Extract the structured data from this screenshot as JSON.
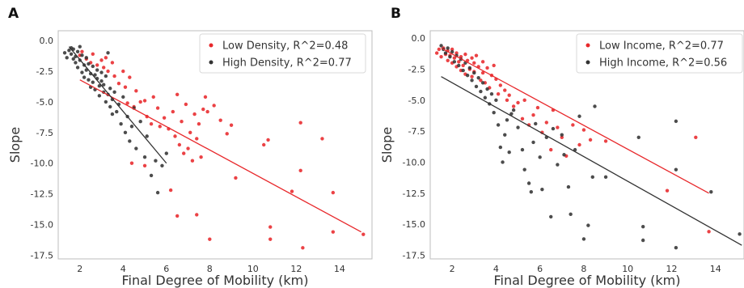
{
  "chart_data": [
    {
      "type": "scatter",
      "panel_label": "A",
      "title": "",
      "xlabel": "Final Degree of Mobility (km)",
      "ylabel": "Slope",
      "xlim": [
        1.0,
        15.5
      ],
      "ylim": [
        -17.8,
        0.8
      ],
      "xticks": [
        2,
        4,
        6,
        8,
        10,
        12,
        14
      ],
      "yticks": [
        0.0,
        -2.5,
        -5.0,
        -7.5,
        -10.0,
        -12.5,
        -15.0,
        -17.5
      ],
      "grid": false,
      "legend_position": "top-right",
      "series": [
        {
          "name": "Low Density, R^2=0.48",
          "color": "#e8282b",
          "fit": {
            "x": [
              2.0,
              15.0
            ],
            "y": [
              -3.2,
              -15.6
            ]
          },
          "points": [
            [
              2.0,
              -1.2
            ],
            [
              2.1,
              -0.9
            ],
            [
              2.3,
              -1.5
            ],
            [
              2.5,
              -1.8
            ],
            [
              2.6,
              -1.1
            ],
            [
              2.8,
              -2.0
            ],
            [
              3.0,
              -1.6
            ],
            [
              3.1,
              -2.2
            ],
            [
              3.2,
              -1.4
            ],
            [
              3.3,
              -2.5
            ],
            [
              3.5,
              -1.8
            ],
            [
              3.6,
              -2.9
            ],
            [
              3.8,
              -3.5
            ],
            [
              4.0,
              -2.5
            ],
            [
              4.1,
              -3.8
            ],
            [
              4.2,
              -5.1
            ],
            [
              4.3,
              -3.0
            ],
            [
              4.5,
              -5.4
            ],
            [
              4.6,
              -4.1
            ],
            [
              4.8,
              -5.0
            ],
            [
              5.0,
              -4.9
            ],
            [
              5.1,
              -6.2
            ],
            [
              5.3,
              -6.8
            ],
            [
              5.4,
              -4.6
            ],
            [
              5.6,
              -5.5
            ],
            [
              5.7,
              -7.0
            ],
            [
              5.9,
              -6.3
            ],
            [
              6.1,
              -7.2
            ],
            [
              6.3,
              -5.8
            ],
            [
              6.4,
              -7.8
            ],
            [
              6.5,
              -4.4
            ],
            [
              6.6,
              -8.5
            ],
            [
              6.7,
              -6.6
            ],
            [
              6.8,
              -9.2
            ],
            [
              6.9,
              -5.2
            ],
            [
              7.0,
              -8.8
            ],
            [
              7.1,
              -7.5
            ],
            [
              7.2,
              -9.8
            ],
            [
              7.3,
              -6.0
            ],
            [
              7.4,
              -8.0
            ],
            [
              7.5,
              -6.8
            ],
            [
              7.6,
              -9.5
            ],
            [
              7.7,
              -5.6
            ],
            [
              7.8,
              -4.6
            ],
            [
              7.9,
              -5.8
            ],
            [
              8.0,
              -16.2
            ],
            [
              8.2,
              -5.3
            ],
            [
              8.5,
              -6.5
            ],
            [
              8.8,
              -7.6
            ],
            [
              9.0,
              -6.9
            ],
            [
              9.2,
              -11.2
            ],
            [
              10.5,
              -8.5
            ],
            [
              10.7,
              -8.1
            ],
            [
              10.8,
              -15.2
            ],
            [
              10.8,
              -16.2
            ],
            [
              11.8,
              -12.3
            ],
            [
              12.2,
              -6.7
            ],
            [
              12.2,
              -10.6
            ],
            [
              12.3,
              -16.9
            ],
            [
              13.2,
              -8.0
            ],
            [
              13.7,
              -12.4
            ],
            [
              13.7,
              -15.6
            ],
            [
              15.1,
              -15.8
            ],
            [
              4.4,
              -10.0
            ],
            [
              5.0,
              -10.2
            ],
            [
              6.2,
              -12.2
            ],
            [
              6.5,
              -14.3
            ],
            [
              7.4,
              -14.2
            ]
          ]
        },
        {
          "name": "High Density, R^2=0.77",
          "color": "#333333",
          "fit": {
            "x": [
              1.5,
              6.0
            ],
            "y": [
              -0.5,
              -10.0
            ]
          },
          "points": [
            [
              1.3,
              -1.0
            ],
            [
              1.4,
              -1.4
            ],
            [
              1.5,
              -0.8
            ],
            [
              1.6,
              -0.6
            ],
            [
              1.6,
              -1.1
            ],
            [
              1.7,
              -1.5
            ],
            [
              1.7,
              -0.7
            ],
            [
              1.8,
              -1.3
            ],
            [
              1.8,
              -1.8
            ],
            [
              1.9,
              -0.9
            ],
            [
              1.9,
              -2.2
            ],
            [
              2.0,
              -1.6
            ],
            [
              2.0,
              -0.5
            ],
            [
              2.1,
              -2.6
            ],
            [
              2.1,
              -1.2
            ],
            [
              2.2,
              -2.0
            ],
            [
              2.2,
              -3.0
            ],
            [
              2.3,
              -1.4
            ],
            [
              2.3,
              -2.4
            ],
            [
              2.4,
              -3.2
            ],
            [
              2.4,
              -1.9
            ],
            [
              2.5,
              -2.7
            ],
            [
              2.5,
              -3.8
            ],
            [
              2.6,
              -2.1
            ],
            [
              2.6,
              -3.4
            ],
            [
              2.7,
              -2.8
            ],
            [
              2.7,
              -4.0
            ],
            [
              2.8,
              -3.1
            ],
            [
              2.8,
              -2.4
            ],
            [
              2.9,
              -3.7
            ],
            [
              2.9,
              -4.5
            ],
            [
              3.0,
              -3.3
            ],
            [
              3.0,
              -2.6
            ],
            [
              3.1,
              -4.2
            ],
            [
              3.1,
              -3.6
            ],
            [
              3.2,
              -5.0
            ],
            [
              3.2,
              -2.9
            ],
            [
              3.3,
              -4.4
            ],
            [
              3.3,
              -1.0
            ],
            [
              3.4,
              -3.9
            ],
            [
              3.4,
              -5.4
            ],
            [
              3.5,
              -4.8
            ],
            [
              3.5,
              -6.0
            ],
            [
              3.6,
              -4.2
            ],
            [
              3.7,
              -5.8
            ],
            [
              3.8,
              -5.2
            ],
            [
              3.9,
              -6.8
            ],
            [
              4.0,
              -4.6
            ],
            [
              4.1,
              -7.5
            ],
            [
              4.2,
              -6.2
            ],
            [
              4.3,
              -8.2
            ],
            [
              4.4,
              -7.0
            ],
            [
              4.5,
              -5.5
            ],
            [
              4.6,
              -8.8
            ],
            [
              4.8,
              -6.6
            ],
            [
              5.0,
              -9.5
            ],
            [
              5.1,
              -7.8
            ],
            [
              5.3,
              -11.0
            ],
            [
              5.5,
              -9.8
            ],
            [
              5.6,
              -12.4
            ],
            [
              5.8,
              -10.2
            ],
            [
              6.0,
              -9.2
            ]
          ]
        }
      ]
    },
    {
      "type": "scatter",
      "panel_label": "B",
      "title": "",
      "xlabel": "Final Degree of Mobility (km)",
      "ylabel": "Slope",
      "xlim": [
        1.0,
        15.3
      ],
      "ylim": [
        -17.8,
        0.6
      ],
      "xticks": [
        2,
        4,
        6,
        8,
        10,
        12,
        14
      ],
      "yticks": [
        0.0,
        -2.5,
        -5.0,
        -7.5,
        -10.0,
        -12.5,
        -15.0,
        -17.5
      ],
      "grid": false,
      "legend_position": "top-right",
      "series": [
        {
          "name": "Low Income, R^2=0.77",
          "color": "#e8282b",
          "fit": {
            "x": [
              1.5,
              13.7
            ],
            "y": [
              -0.8,
              -12.5
            ]
          },
          "points": [
            [
              1.3,
              -1.2
            ],
            [
              1.4,
              -0.9
            ],
            [
              1.5,
              -1.5
            ],
            [
              1.6,
              -0.8
            ],
            [
              1.7,
              -1.3
            ],
            [
              1.8,
              -1.0
            ],
            [
              1.8,
              -1.8
            ],
            [
              1.9,
              -1.4
            ],
            [
              2.0,
              -2.0
            ],
            [
              2.0,
              -0.9
            ],
            [
              2.1,
              -1.6
            ],
            [
              2.2,
              -2.3
            ],
            [
              2.2,
              -1.2
            ],
            [
              2.3,
              -1.9
            ],
            [
              2.4,
              -2.6
            ],
            [
              2.4,
              -1.5
            ],
            [
              2.5,
              -2.2
            ],
            [
              2.6,
              -1.3
            ],
            [
              2.6,
              -2.9
            ],
            [
              2.7,
              -1.8
            ],
            [
              2.8,
              -2.5
            ],
            [
              2.9,
              -1.6
            ],
            [
              2.9,
              -3.1
            ],
            [
              3.0,
              -2.0
            ],
            [
              3.0,
              -2.7
            ],
            [
              3.1,
              -1.4
            ],
            [
              3.2,
              -2.3
            ],
            [
              3.3,
              -3.4
            ],
            [
              3.4,
              -1.9
            ],
            [
              3.4,
              -2.8
            ],
            [
              3.5,
              -3.6
            ],
            [
              3.6,
              -2.4
            ],
            [
              3.7,
              -4.0
            ],
            [
              3.8,
              -3.0
            ],
            [
              3.9,
              -2.2
            ],
            [
              4.0,
              -3.3
            ],
            [
              4.1,
              -4.5
            ],
            [
              4.2,
              -3.8
            ],
            [
              4.4,
              -4.2
            ],
            [
              4.5,
              -5.0
            ],
            [
              4.6,
              -4.6
            ],
            [
              4.8,
              -5.5
            ],
            [
              5.0,
              -5.2
            ],
            [
              5.2,
              -6.5
            ],
            [
              5.3,
              -5.0
            ],
            [
              5.5,
              -7.0
            ],
            [
              5.7,
              -6.2
            ],
            [
              5.9,
              -5.6
            ],
            [
              6.1,
              -7.6
            ],
            [
              6.3,
              -6.8
            ],
            [
              6.5,
              -9.0
            ],
            [
              6.6,
              -5.8
            ],
            [
              6.8,
              -7.2
            ],
            [
              7.0,
              -8.0
            ],
            [
              7.2,
              -9.5
            ],
            [
              7.5,
              -7.0
            ],
            [
              7.8,
              -8.6
            ],
            [
              8.0,
              -7.4
            ],
            [
              8.3,
              -8.2
            ],
            [
              9.0,
              -8.3
            ],
            [
              11.8,
              -12.3
            ],
            [
              13.1,
              -8.0
            ],
            [
              13.7,
              -15.6
            ]
          ]
        },
        {
          "name": "High Income, R^2=0.56",
          "color": "#333333",
          "fit": {
            "x": [
              1.5,
              15.2
            ],
            "y": [
              -3.1,
              -16.7
            ]
          },
          "points": [
            [
              1.5,
              -0.6
            ],
            [
              1.6,
              -0.9
            ],
            [
              1.7,
              -1.2
            ],
            [
              1.8,
              -0.8
            ],
            [
              1.9,
              -1.5
            ],
            [
              2.0,
              -1.1
            ],
            [
              2.1,
              -1.9
            ],
            [
              2.2,
              -1.4
            ],
            [
              2.3,
              -2.2
            ],
            [
              2.4,
              -1.7
            ],
            [
              2.5,
              -2.6
            ],
            [
              2.6,
              -2.0
            ],
            [
              2.7,
              -3.0
            ],
            [
              2.8,
              -2.4
            ],
            [
              2.9,
              -3.4
            ],
            [
              3.0,
              -2.8
            ],
            [
              3.1,
              -3.9
            ],
            [
              3.2,
              -3.2
            ],
            [
              3.3,
              -4.3
            ],
            [
              3.4,
              -3.6
            ],
            [
              3.5,
              -4.8
            ],
            [
              3.6,
              -4.1
            ],
            [
              3.7,
              -5.3
            ],
            [
              3.8,
              -4.5
            ],
            [
              3.9,
              -6.0
            ],
            [
              4.0,
              -5.0
            ],
            [
              4.1,
              -7.0
            ],
            [
              4.2,
              -8.8
            ],
            [
              4.3,
              -10.0
            ],
            [
              4.4,
              -7.8
            ],
            [
              4.5,
              -6.6
            ],
            [
              4.6,
              -9.2
            ],
            [
              4.7,
              -6.1
            ],
            [
              4.8,
              -5.8
            ],
            [
              5.0,
              -7.2
            ],
            [
              5.2,
              -9.0
            ],
            [
              5.3,
              -10.6
            ],
            [
              5.5,
              -11.7
            ],
            [
              5.6,
              -12.4
            ],
            [
              5.7,
              -8.4
            ],
            [
              5.8,
              -6.9
            ],
            [
              6.0,
              -9.6
            ],
            [
              6.1,
              -12.2
            ],
            [
              6.3,
              -8.0
            ],
            [
              6.5,
              -14.4
            ],
            [
              6.6,
              -7.3
            ],
            [
              6.8,
              -10.2
            ],
            [
              7.0,
              -7.8
            ],
            [
              7.1,
              -9.4
            ],
            [
              7.3,
              -12.0
            ],
            [
              7.4,
              -14.2
            ],
            [
              7.6,
              -9.0
            ],
            [
              7.8,
              -6.3
            ],
            [
              8.0,
              -16.2
            ],
            [
              8.2,
              -15.1
            ],
            [
              8.4,
              -11.2
            ],
            [
              8.5,
              -5.5
            ],
            [
              9.0,
              -11.2
            ],
            [
              10.5,
              -8.0
            ],
            [
              10.7,
              -15.2
            ],
            [
              10.7,
              -16.3
            ],
            [
              12.2,
              -6.7
            ],
            [
              12.2,
              -10.6
            ],
            [
              12.2,
              -16.9
            ],
            [
              13.8,
              -12.4
            ],
            [
              15.1,
              -15.8
            ]
          ]
        }
      ]
    }
  ]
}
